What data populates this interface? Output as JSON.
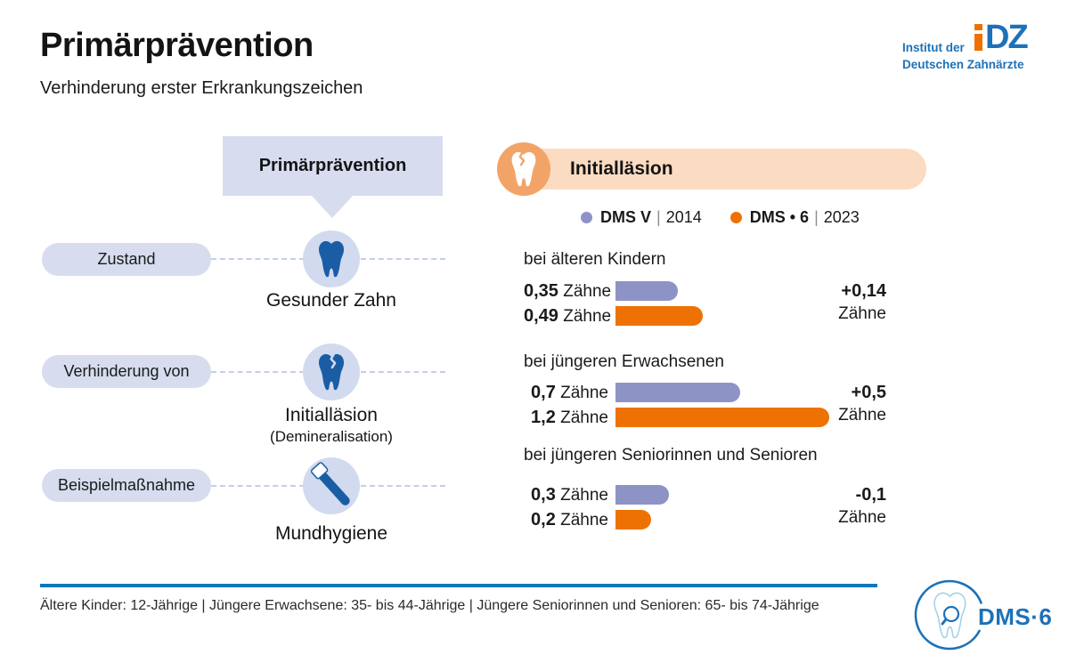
{
  "header": {
    "title": "Primärprävention",
    "subtitle": "Verhinderung erster Erkrankungszeichen"
  },
  "logo_idz": {
    "line1": "Institut der",
    "line2": "Deutschen Zahnärzte",
    "mark": "DZ"
  },
  "flow": {
    "box_label": "Primärprävention",
    "rows": [
      {
        "pill": "Zustand",
        "icon": "tooth",
        "label": "Gesunder Zahn",
        "sublabel": ""
      },
      {
        "pill": "Verhinderung von",
        "icon": "cracked-tooth",
        "label": "Initialläsion",
        "sublabel": "(Demineralisation)"
      },
      {
        "pill": "Beispielmaßnahme",
        "icon": "toothbrush",
        "label": "Mundhygiene",
        "sublabel": ""
      }
    ]
  },
  "chart": {
    "header": "Initialläsion",
    "unit": "Zähne",
    "legend_separator": "|",
    "legend": [
      {
        "name": "DMS V",
        "year": "2014"
      },
      {
        "name": "DMS • 6",
        "year": "2023"
      }
    ],
    "groups": [
      {
        "label": "bei älteren Kindern",
        "values": [
          "0,35",
          "0,49"
        ],
        "delta": "+0,14"
      },
      {
        "label": "bei jüngeren Erwachsenen",
        "values": [
          "0,7",
          "1,2"
        ],
        "delta": "+0,5"
      },
      {
        "label": "bei jüngeren Seniorinnen und Senioren",
        "values": [
          "0,3",
          "0,2"
        ],
        "delta": "-0,1"
      }
    ]
  },
  "chart_data": {
    "type": "bar",
    "orientation": "horizontal",
    "title": "Initialläsion",
    "unit": "Zähne",
    "categories": [
      "bei älteren Kindern",
      "bei jüngeren Erwachsenen",
      "bei jüngeren Seniorinnen und Senioren"
    ],
    "series": [
      {
        "name": "DMS V | 2014",
        "values": [
          0.35,
          0.7,
          0.3
        ],
        "color": "#8e93c6"
      },
      {
        "name": "DMS • 6 | 2023",
        "values": [
          0.49,
          1.2,
          0.2
        ],
        "color": "#ee7203"
      }
    ],
    "deltas": [
      0.14,
      0.5,
      -0.1
    ],
    "xlim": [
      0,
      1.3
    ],
    "grid": false,
    "legend_position": "top"
  },
  "footer": {
    "note": "Ältere Kinder: 12-Jährige | Jüngere Erwachsene: 35- bis 44-Jährige | Jüngere Seniorinnen und Senioren: 65- bis 74-Jährige",
    "logo_text": "DMS·6"
  },
  "colors": {
    "purple": "#8e93c6",
    "orange": "#ee7203",
    "lavender": "#d7ddef",
    "circle_lavender": "#d2daef",
    "peach_band": "#fbdcc2",
    "peach_circle": "#f2a468",
    "tooth_blue": "#1b5da5",
    "brand_blue": "#1d71b8",
    "footer_line_blue": "#0e76bc"
  }
}
